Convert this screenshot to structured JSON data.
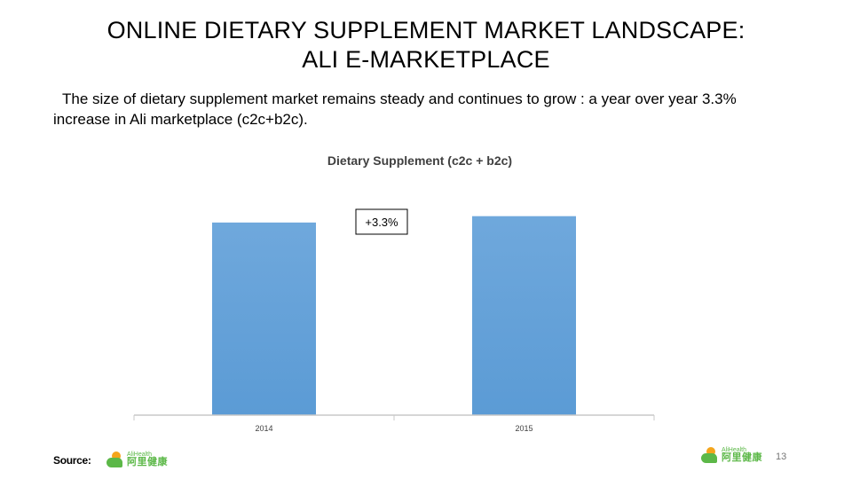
{
  "slide": {
    "title_line1": "ONLINE DIETARY SUPPLEMENT MARKET LANDSCAPE:",
    "title_line2": "ALI E-MARKETPLACE",
    "body_text": "The size of dietary supplement market remains steady and continues to grow : a year over year 3.3% increase in Ali marketplace (c2c+b2c).",
    "source_label": "Source:",
    "page_number": "13"
  },
  "logos": {
    "left": {
      "en": "AliHealth",
      "cn": "阿里健康"
    },
    "right": {
      "en": "AliHealth",
      "cn": "阿里健康"
    }
  },
  "chart_data": {
    "type": "bar",
    "title": "Dietary Supplement (c2c + b2c)",
    "categories": [
      "2014",
      "2015"
    ],
    "values": [
      100,
      103.3
    ],
    "annotation": "+3.3%",
    "bar_color": "#5b9bd5",
    "ylim": [
      0,
      105
    ],
    "grid": false
  }
}
